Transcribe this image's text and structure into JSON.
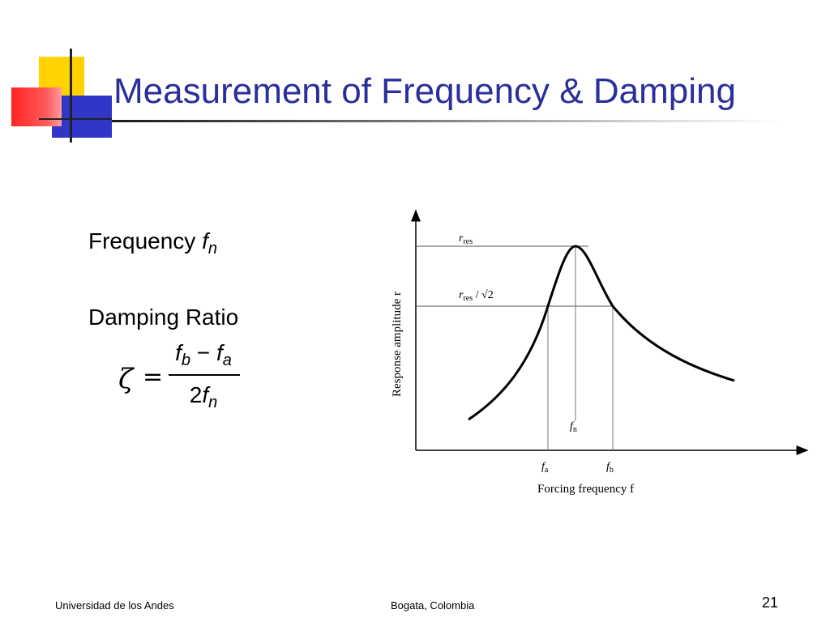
{
  "slide": {
    "title": "Measurement of Frequency & Damping",
    "page_number": "21"
  },
  "content": {
    "frequency_label": "Frequency",
    "frequency_symbol": "f",
    "frequency_subscript": "n",
    "damping_label": "Damping Ratio",
    "formula": {
      "lhs": "ζ",
      "equals": "=",
      "numerator_f1": "f",
      "numerator_s1": "b",
      "minus": " − ",
      "numerator_f2": "f",
      "numerator_s2": "a",
      "denominator_coef": "2",
      "denominator_f": "f",
      "denominator_s": "n"
    }
  },
  "figure": {
    "y_axis_label": "Response amplitude r",
    "x_axis_label": "Forcing frequency f",
    "r_res": "r",
    "r_res_sub": "res",
    "r_half": "r",
    "r_half_sub": "res",
    "r_half_suffix": " / √2",
    "fn_label": "f",
    "fn_sub": "n",
    "fa_label": "f",
    "fa_sub": "a",
    "fb_label": "f",
    "fb_sub": "b"
  },
  "footer": {
    "left": "Universidad de los Andes",
    "center": "Bogata, Colombia"
  }
}
